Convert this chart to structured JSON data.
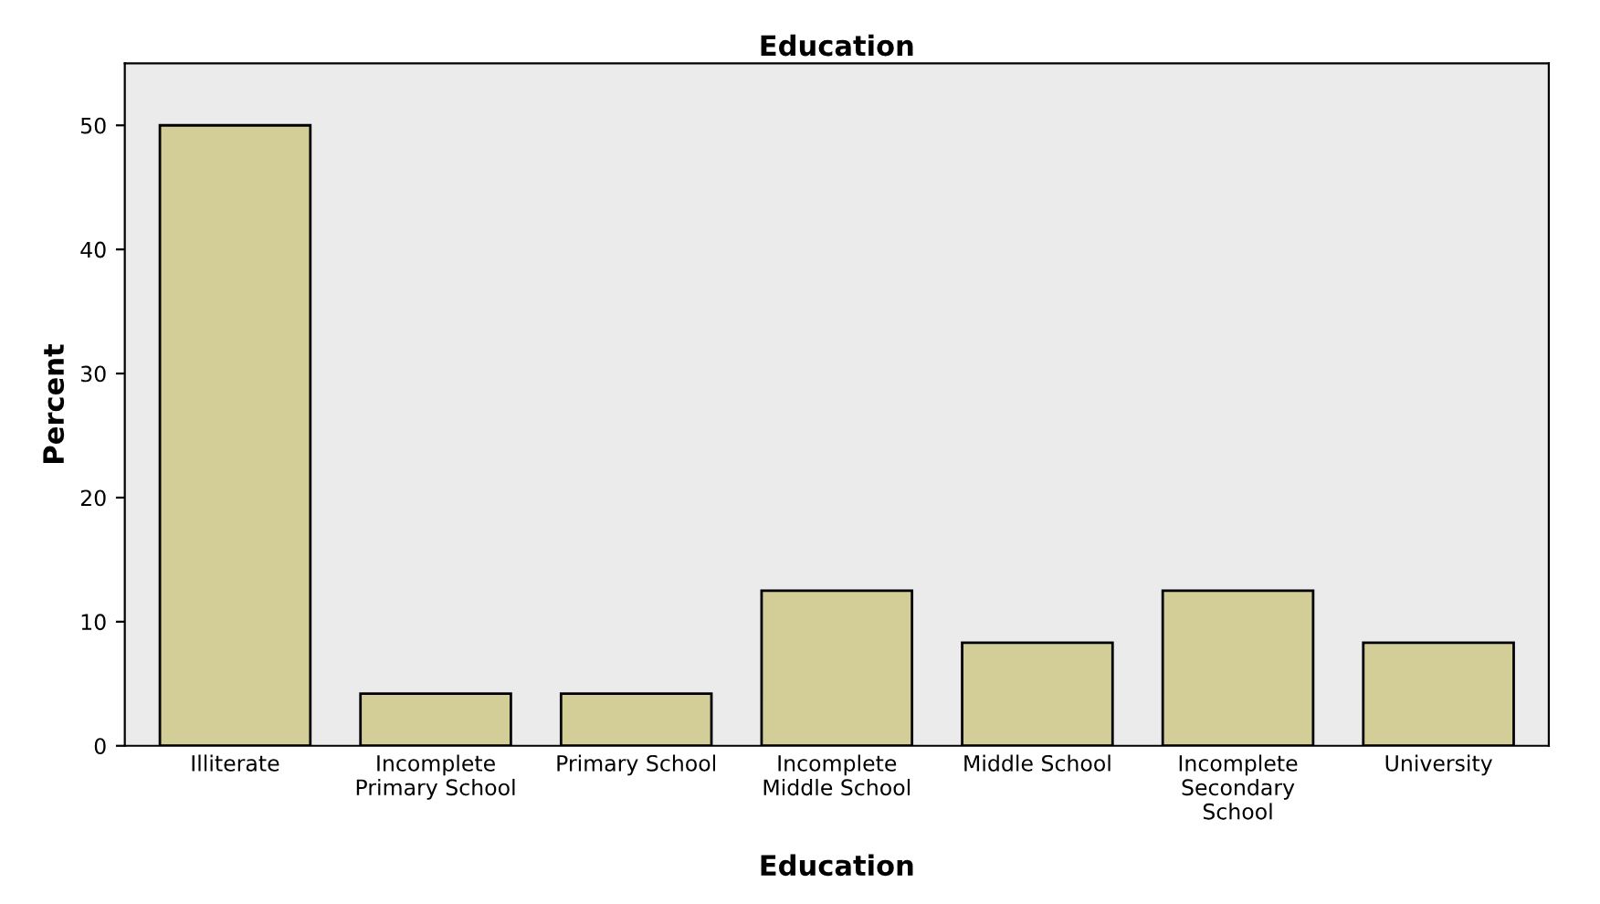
{
  "chart_data": {
    "type": "bar",
    "title": "Education",
    "xlabel": "Education",
    "ylabel": "Percent",
    "categories": [
      "Illiterate",
      "Incomplete\nPrimary School",
      "Primary School",
      "Incomplete\nMiddle School",
      "Middle School",
      "Incomplete\nSecondary\nSchool",
      "University"
    ],
    "values": [
      50,
      4.2,
      4.2,
      12.5,
      8.3,
      12.5,
      8.3
    ],
    "color": "#d3ce97",
    "ylim": [
      0,
      55
    ],
    "yticks": [
      0,
      10,
      20,
      30,
      40,
      50
    ],
    "grid": false,
    "legend": false
  }
}
